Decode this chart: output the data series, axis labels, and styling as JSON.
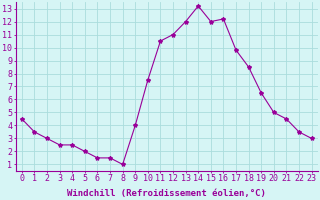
{
  "x": [
    0,
    1,
    2,
    3,
    4,
    5,
    6,
    7,
    8,
    9,
    10,
    11,
    12,
    13,
    14,
    15,
    16,
    17,
    18,
    19,
    20,
    21,
    22,
    23
  ],
  "y": [
    4.5,
    3.5,
    3.0,
    2.5,
    2.5,
    2.0,
    1.5,
    1.5,
    1.0,
    4.0,
    7.5,
    10.5,
    11.0,
    12.0,
    13.2,
    12.0,
    12.2,
    9.8,
    8.5,
    6.5,
    5.0,
    4.5,
    3.5,
    3.0
  ],
  "line_color": "#990099",
  "marker": "*",
  "marker_size": 3,
  "bg_color": "#d6f5f5",
  "grid_color": "#aadddd",
  "xlabel": "Windchill (Refroidissement éolien,°C)",
  "xlabel_fontsize": 6.5,
  "tick_fontsize": 6,
  "ylim": [
    0.5,
    13.5
  ],
  "xlim": [
    -0.5,
    23.5
  ],
  "yticks": [
    1,
    2,
    3,
    4,
    5,
    6,
    7,
    8,
    9,
    10,
    11,
    12,
    13
  ],
  "xticks": [
    0,
    1,
    2,
    3,
    4,
    5,
    6,
    7,
    8,
    9,
    10,
    11,
    12,
    13,
    14,
    15,
    16,
    17,
    18,
    19,
    20,
    21,
    22,
    23
  ]
}
